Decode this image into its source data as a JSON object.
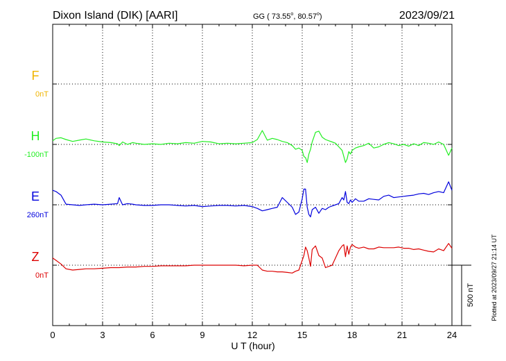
{
  "header": {
    "station": "Dixon Island (DIK)  [AARI]",
    "coords_text": "GG ( 73.55",
    "coords_lat_sup": "o",
    "coords_mid": ",  80.57",
    "coords_lon_sup": "o",
    "coords_end": ")",
    "date": "2023/09/21"
  },
  "footer": {
    "plotted_at": "Plotted at 2023/09/27 21:14 UT"
  },
  "scale_bar": {
    "label": "500 nT"
  },
  "colors": {
    "F": "#f0b400",
    "H": "#22ee22",
    "E": "#0000dd",
    "Z": "#dd0000",
    "axis": "#000000",
    "grid": "#000000"
  },
  "chart_data": {
    "type": "line",
    "xlabel": "U T (hour)",
    "xlim": [
      0,
      24
    ],
    "xticks": [
      0,
      3,
      6,
      9,
      12,
      15,
      18,
      21,
      24
    ],
    "grid": true,
    "scale_nT": 500,
    "panels": [
      {
        "name": "F",
        "offset_label": "0nT",
        "baseline_nT": 0
      },
      {
        "name": "H",
        "offset_label": "-100nT",
        "baseline_nT": -100
      },
      {
        "name": "E",
        "offset_label": "260nT",
        "baseline_nT": 260
      },
      {
        "name": "Z",
        "offset_label": "0nT",
        "baseline_nT": 0
      }
    ],
    "series": [
      {
        "name": "H",
        "values_note": "deviation from baseline in nT",
        "x": [
          0,
          0.2,
          0.5,
          0.8,
          1.2,
          1.6,
          2.0,
          2.5,
          3.0,
          3.5,
          3.9,
          4.0,
          4.2,
          4.5,
          4.8,
          5.0,
          5.5,
          6.0,
          6.5,
          7.0,
          7.5,
          8.0,
          8.5,
          9.0,
          9.5,
          10.0,
          10.5,
          11.0,
          11.5,
          12.0,
          12.3,
          12.6,
          12.9,
          13.2,
          13.5,
          13.8,
          14.1,
          14.4,
          14.6,
          14.8,
          15.0,
          15.1,
          15.2,
          15.3,
          15.4,
          15.5,
          15.6,
          15.8,
          16.0,
          16.2,
          16.4,
          16.6,
          16.8,
          17.0,
          17.2,
          17.4,
          17.5,
          17.6,
          17.7,
          17.8,
          17.9,
          18.0,
          18.2,
          18.4,
          18.7,
          19.0,
          19.3,
          19.6,
          19.9,
          20.2,
          20.5,
          20.8,
          21.1,
          21.4,
          21.7,
          22.0,
          22.3,
          22.6,
          22.9,
          23.2,
          23.5,
          23.8,
          24.0
        ],
        "values": [
          30,
          50,
          55,
          40,
          25,
          35,
          45,
          30,
          20,
          15,
          5,
          -10,
          20,
          0,
          15,
          10,
          0,
          5,
          0,
          10,
          5,
          15,
          10,
          25,
          20,
          5,
          10,
          5,
          10,
          15,
          40,
          115,
          35,
          50,
          40,
          25,
          15,
          -10,
          -40,
          -30,
          -50,
          -100,
          -110,
          -150,
          -80,
          -40,
          20,
          100,
          110,
          60,
          40,
          30,
          20,
          10,
          -20,
          -50,
          -100,
          -150,
          -120,
          -60,
          -80,
          -50,
          -30,
          -20,
          -10,
          10,
          -30,
          -20,
          0,
          15,
          5,
          -10,
          0,
          -15,
          5,
          -10,
          15,
          10,
          0,
          20,
          0,
          -90,
          -30
        ]
      },
      {
        "name": "E",
        "values_note": "deviation from baseline in nT",
        "x": [
          0,
          0.2,
          0.5,
          0.8,
          1.2,
          1.6,
          2.0,
          2.5,
          3.0,
          3.5,
          3.9,
          4.0,
          4.2,
          4.5,
          4.8,
          5.0,
          5.5,
          6.0,
          6.5,
          7.0,
          7.5,
          8.0,
          8.5,
          9.0,
          9.5,
          10.0,
          10.5,
          11.0,
          11.5,
          12.0,
          12.3,
          12.6,
          12.9,
          13.2,
          13.5,
          13.8,
          14.1,
          14.4,
          14.6,
          14.8,
          15.0,
          15.1,
          15.2,
          15.3,
          15.4,
          15.5,
          15.6,
          15.8,
          16.0,
          16.2,
          16.4,
          16.6,
          16.8,
          17.0,
          17.2,
          17.4,
          17.5,
          17.6,
          17.7,
          17.8,
          17.9,
          18.0,
          18.2,
          18.4,
          18.7,
          19.0,
          19.3,
          19.6,
          19.9,
          20.2,
          20.5,
          20.8,
          21.1,
          21.4,
          21.7,
          22.0,
          22.3,
          22.6,
          22.9,
          23.2,
          23.5,
          23.8,
          24.0
        ],
        "values": [
          120,
          110,
          80,
          5,
          0,
          -5,
          0,
          5,
          0,
          5,
          10,
          60,
          0,
          10,
          5,
          0,
          -5,
          -5,
          0,
          0,
          -5,
          -10,
          -5,
          -15,
          -10,
          -5,
          -5,
          -10,
          -5,
          -15,
          -30,
          -50,
          -40,
          -30,
          -20,
          60,
          20,
          -20,
          -80,
          -60,
          50,
          130,
          130,
          -20,
          -80,
          -100,
          -40,
          -20,
          -70,
          -30,
          -40,
          -20,
          -10,
          0,
          10,
          60,
          40,
          110,
          20,
          10,
          40,
          20,
          50,
          30,
          30,
          50,
          45,
          40,
          70,
          80,
          60,
          65,
          70,
          75,
          80,
          90,
          95,
          85,
          100,
          110,
          100,
          190,
          120
        ]
      },
      {
        "name": "Z",
        "values_note": "deviation from baseline in nT",
        "x": [
          0,
          0.2,
          0.5,
          0.8,
          1.2,
          1.6,
          2.0,
          2.5,
          3.0,
          3.5,
          4.0,
          4.5,
          5.0,
          5.5,
          6.0,
          6.5,
          7.0,
          7.5,
          8.0,
          8.5,
          9.0,
          9.5,
          10.0,
          10.5,
          11.0,
          11.5,
          12.0,
          12.3,
          12.6,
          12.9,
          13.2,
          13.5,
          13.8,
          14.1,
          14.4,
          14.6,
          14.8,
          15.0,
          15.1,
          15.2,
          15.3,
          15.4,
          15.5,
          15.6,
          15.8,
          16.0,
          16.2,
          16.4,
          16.6,
          16.8,
          17.0,
          17.2,
          17.4,
          17.5,
          17.6,
          17.7,
          17.8,
          17.9,
          18.0,
          18.2,
          18.4,
          18.7,
          19.0,
          19.3,
          19.6,
          19.9,
          20.2,
          20.5,
          20.8,
          21.1,
          21.4,
          21.7,
          22.0,
          22.3,
          22.6,
          22.9,
          23.2,
          23.5,
          23.8,
          24.0
        ],
        "values": [
          60,
          40,
          10,
          -30,
          -40,
          -35,
          -30,
          -30,
          -25,
          -20,
          -20,
          -15,
          -15,
          -10,
          -10,
          -5,
          -5,
          -5,
          -5,
          0,
          0,
          0,
          0,
          0,
          0,
          -5,
          0,
          0,
          -40,
          -50,
          -50,
          -55,
          -55,
          -60,
          -65,
          -50,
          -40,
          40,
          80,
          150,
          120,
          60,
          -10,
          130,
          160,
          80,
          60,
          -20,
          -10,
          0,
          60,
          120,
          160,
          170,
          70,
          160,
          90,
          150,
          170,
          150,
          140,
          150,
          135,
          135,
          150,
          145,
          145,
          145,
          150,
          140,
          140,
          130,
          135,
          125,
          115,
          110,
          135,
          120,
          180,
          140
        ]
      }
    ]
  }
}
